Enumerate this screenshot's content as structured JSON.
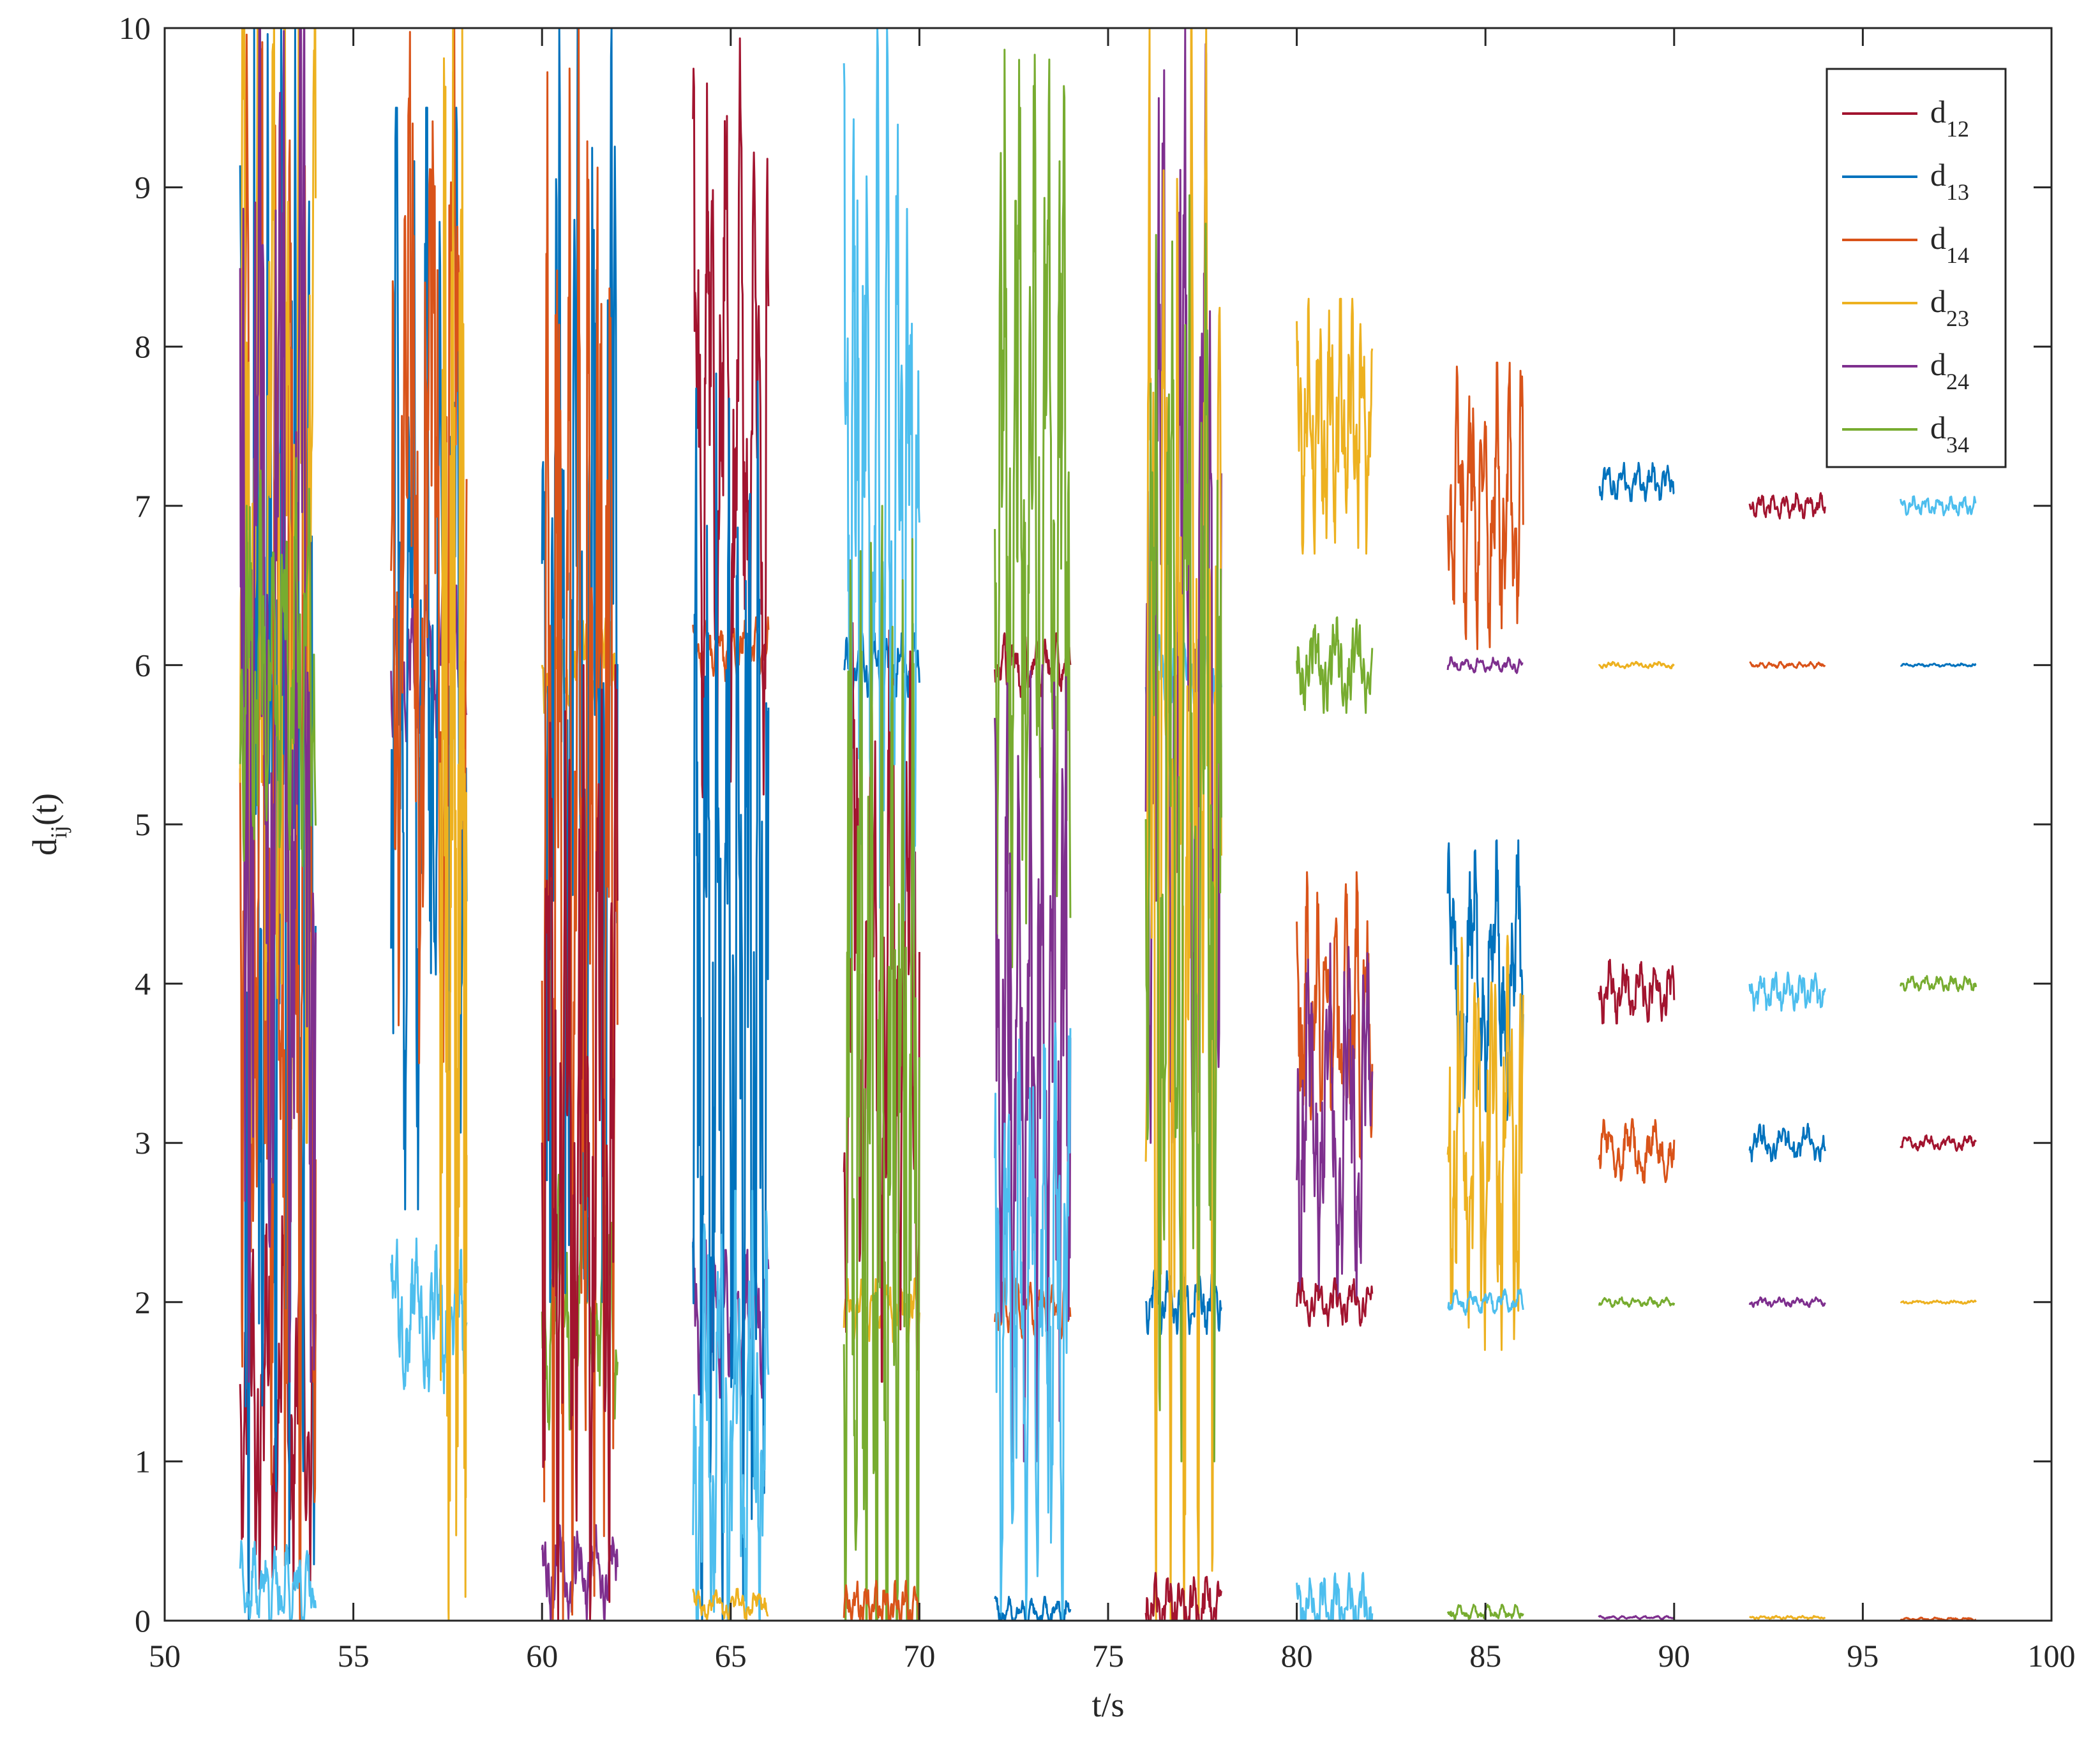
{
  "chart_data": {
    "type": "line",
    "title": "",
    "xlabel": "t/s",
    "ylabel": {
      "base": "d",
      "sub": "ij",
      "suffix": "(t)"
    },
    "xlim": [
      50,
      100
    ],
    "ylim": [
      0,
      10
    ],
    "xticks": [
      "50",
      "55",
      "60",
      "65",
      "70",
      "75",
      "80",
      "85",
      "90",
      "95",
      "100"
    ],
    "yticks": [
      "0",
      "1",
      "2",
      "3",
      "4",
      "5",
      "6",
      "7",
      "8",
      "9",
      "10"
    ],
    "grid": false,
    "legend_position": "top-right",
    "legend": [
      {
        "base": "d",
        "sub": "12",
        "color": "#A2142F"
      },
      {
        "base": "d",
        "sub": "13",
        "color": "#0072BD"
      },
      {
        "base": "d",
        "sub": "14",
        "color": "#D95319"
      },
      {
        "base": "d",
        "sub": "23",
        "color": "#EDB120"
      },
      {
        "base": "d",
        "sub": "24",
        "color": "#7E2F8E"
      },
      {
        "base": "d",
        "sub": "34",
        "color": "#77AC30"
      }
    ],
    "extra_color": "#4DBEEE",
    "segments": [
      {
        "series": "d12",
        "color": "#A2142F",
        "t0": 52,
        "t1": 54,
        "level": 1.4,
        "amp": 1.2
      },
      {
        "series": "d13",
        "color": "#0072BD",
        "t0": 52,
        "t1": 54,
        "level": 5.0,
        "amp": 5.0
      },
      {
        "series": "d14",
        "color": "#D95319",
        "t0": 52,
        "t1": 54,
        "level": 5.0,
        "amp": 5.0
      },
      {
        "series": "d23",
        "color": "#EDB120",
        "t0": 52,
        "t1": 54,
        "level": 7.0,
        "amp": 4.0
      },
      {
        "series": "d24",
        "color": "#7E2F8E",
        "t0": 52,
        "t1": 54,
        "level": 6.0,
        "amp": 4.5
      },
      {
        "series": "d34",
        "color": "#77AC30",
        "t0": 52,
        "t1": 54,
        "level": 6.0,
        "amp": 1.3
      },
      {
        "series": "extra",
        "color": "#4DBEEE",
        "t0": 52,
        "t1": 54,
        "level": 0.2,
        "amp": 0.3
      },
      {
        "series": "d24",
        "color": "#7E2F8E",
        "t0": 56,
        "t1": 58,
        "level": 6.0,
        "amp": 0.5
      },
      {
        "series": "extra",
        "color": "#4DBEEE",
        "t0": 56,
        "t1": 58,
        "level": 1.9,
        "amp": 0.5
      },
      {
        "series": "d13",
        "color": "#0072BD",
        "t0": 56,
        "t1": 58,
        "level": 6.0,
        "amp": 3.5
      },
      {
        "series": "d14",
        "color": "#D95319",
        "t0": 56,
        "t1": 58,
        "level": 7.0,
        "amp": 3.5
      },
      {
        "series": "d23",
        "color": "#EDB120",
        "t0": 57.3,
        "t1": 58,
        "level": 5.0,
        "amp": 5.0
      },
      {
        "series": "d23",
        "color": "#EDB120",
        "t0": 60,
        "t1": 62,
        "level": 6.0,
        "amp": 0.3
      },
      {
        "series": "d34",
        "color": "#77AC30",
        "t0": 60,
        "t1": 62,
        "level": 2.0,
        "amp": 0.8
      },
      {
        "series": "d24",
        "color": "#7E2F8E",
        "t0": 60,
        "t1": 62,
        "level": 0.3,
        "amp": 0.3
      },
      {
        "series": "d13",
        "color": "#0072BD",
        "t0": 60,
        "t1": 62,
        "level": 6.0,
        "amp": 4.0
      },
      {
        "series": "d14",
        "color": "#D95319",
        "t0": 60,
        "t1": 62,
        "level": 5.0,
        "amp": 5.0
      },
      {
        "series": "d12",
        "color": "#A2142F",
        "t0": 60,
        "t1": 62,
        "level": 3.0,
        "amp": 3.0
      },
      {
        "series": "d14",
        "color": "#D95319",
        "t0": 64,
        "t1": 66,
        "level": 6.1,
        "amp": 0.2
      },
      {
        "series": "d24",
        "color": "#7E2F8E",
        "t0": 64,
        "t1": 66,
        "level": 1.9,
        "amp": 0.5
      },
      {
        "series": "d12",
        "color": "#A2142F",
        "t0": 64,
        "t1": 66,
        "level": 7.5,
        "amp": 2.5
      },
      {
        "series": "d13",
        "color": "#0072BD",
        "t0": 64,
        "t1": 66,
        "level": 4.0,
        "amp": 4.0
      },
      {
        "series": "extra",
        "color": "#4DBEEE",
        "t0": 64,
        "t1": 66,
        "level": 1.2,
        "amp": 1.5
      },
      {
        "series": "d23",
        "color": "#EDB120",
        "t0": 64,
        "t1": 66,
        "level": 0.1,
        "amp": 0.1
      },
      {
        "series": "d13",
        "color": "#0072BD",
        "t0": 68,
        "t1": 70,
        "level": 6.0,
        "amp": 0.2
      },
      {
        "series": "d23",
        "color": "#EDB120",
        "t0": 68,
        "t1": 70,
        "level": 1.95,
        "amp": 0.2
      },
      {
        "series": "d12",
        "color": "#A2142F",
        "t0": 68,
        "t1": 70,
        "level": 4.0,
        "amp": 2.5
      },
      {
        "series": "extra",
        "color": "#4DBEEE",
        "t0": 68,
        "t1": 70,
        "level": 7.0,
        "amp": 3.0
      },
      {
        "series": "d34",
        "color": "#77AC30",
        "t0": 68,
        "t1": 70,
        "level": 3.0,
        "amp": 4.0
      },
      {
        "series": "d14",
        "color": "#D95319",
        "t0": 68,
        "t1": 70,
        "level": 0.1,
        "amp": 0.15
      },
      {
        "series": "d12",
        "color": "#A2142F",
        "t0": 72,
        "t1": 74,
        "level": 6.0,
        "amp": 0.2
      },
      {
        "series": "d14",
        "color": "#D95319",
        "t0": 72,
        "t1": 74,
        "level": 1.95,
        "amp": 0.2
      },
      {
        "series": "d34",
        "color": "#77AC30",
        "t0": 72,
        "t1": 74,
        "level": 7.0,
        "amp": 3.0
      },
      {
        "series": "d24",
        "color": "#7E2F8E",
        "t0": 72,
        "t1": 74,
        "level": 3.5,
        "amp": 2.5
      },
      {
        "series": "extra",
        "color": "#4DBEEE",
        "t0": 72,
        "t1": 74,
        "level": 2.0,
        "amp": 2.0
      },
      {
        "series": "d13",
        "color": "#0072BD",
        "t0": 72,
        "t1": 74,
        "level": 0.05,
        "amp": 0.1
      },
      {
        "series": "extra",
        "color": "#4DBEEE",
        "t0": 76,
        "t1": 78,
        "level": 6.0,
        "amp": 0.25
      },
      {
        "series": "d13",
        "color": "#0072BD",
        "t0": 76,
        "t1": 78,
        "level": 2.0,
        "amp": 0.2
      },
      {
        "series": "d24",
        "color": "#7E2F8E",
        "t0": 76,
        "t1": 78,
        "level": 6.5,
        "amp": 3.5
      },
      {
        "series": "d23",
        "color": "#EDB120",
        "t0": 76,
        "t1": 78,
        "level": 5.0,
        "amp": 5.0
      },
      {
        "series": "d34",
        "color": "#77AC30",
        "t0": 76,
        "t1": 78,
        "level": 5.0,
        "amp": 4.0
      },
      {
        "series": "d12",
        "color": "#A2142F",
        "t0": 76,
        "t1": 78,
        "level": 0.1,
        "amp": 0.2
      },
      {
        "series": "d23",
        "color": "#EDB120",
        "t0": 80,
        "t1": 82,
        "level": 7.5,
        "amp": 0.8
      },
      {
        "series": "d34",
        "color": "#77AC30",
        "t0": 80,
        "t1": 82,
        "level": 6.0,
        "amp": 0.3
      },
      {
        "series": "d14",
        "color": "#D95319",
        "t0": 80,
        "t1": 82,
        "level": 3.8,
        "amp": 0.9
      },
      {
        "series": "d24",
        "color": "#7E2F8E",
        "t0": 80,
        "t1": 82,
        "level": 3.2,
        "amp": 1.2
      },
      {
        "series": "d12",
        "color": "#A2142F",
        "t0": 80,
        "t1": 82,
        "level": 2.0,
        "amp": 0.15
      },
      {
        "series": "extra",
        "color": "#4DBEEE",
        "t0": 80,
        "t1": 82,
        "level": 0.1,
        "amp": 0.2
      },
      {
        "series": "d14",
        "color": "#D95319",
        "t0": 84,
        "t1": 86,
        "level": 7.0,
        "amp": 0.9
      },
      {
        "series": "d24",
        "color": "#7E2F8E",
        "t0": 84,
        "t1": 86,
        "level": 6.0,
        "amp": 0.05
      },
      {
        "series": "d13",
        "color": "#0072BD",
        "t0": 84,
        "t1": 86,
        "level": 4.0,
        "amp": 0.9
      },
      {
        "series": "d23",
        "color": "#EDB120",
        "t0": 84,
        "t1": 86,
        "level": 3.0,
        "amp": 1.3
      },
      {
        "series": "extra",
        "color": "#4DBEEE",
        "t0": 84,
        "t1": 86,
        "level": 2.0,
        "amp": 0.08
      },
      {
        "series": "d34",
        "color": "#77AC30",
        "t0": 84,
        "t1": 86,
        "level": 0.05,
        "amp": 0.05
      },
      {
        "series": "d13",
        "color": "#0072BD",
        "t0": 88,
        "t1": 90,
        "level": 7.15,
        "amp": 0.12
      },
      {
        "series": "d23",
        "color": "#EDB120",
        "t0": 88,
        "t1": 90,
        "level": 6.0,
        "amp": 0.02
      },
      {
        "series": "d12",
        "color": "#A2142F",
        "t0": 88,
        "t1": 90,
        "level": 3.95,
        "amp": 0.2
      },
      {
        "series": "d14",
        "color": "#D95319",
        "t0": 88,
        "t1": 90,
        "level": 2.95,
        "amp": 0.2
      },
      {
        "series": "d34",
        "color": "#77AC30",
        "t0": 88,
        "t1": 90,
        "level": 2.0,
        "amp": 0.03
      },
      {
        "series": "d24",
        "color": "#7E2F8E",
        "t0": 88,
        "t1": 90,
        "level": 0.02,
        "amp": 0.01
      },
      {
        "series": "d12",
        "color": "#A2142F",
        "t0": 92,
        "t1": 94,
        "level": 7.0,
        "amp": 0.08
      },
      {
        "series": "d14",
        "color": "#D95319",
        "t0": 92,
        "t1": 94,
        "level": 6.0,
        "amp": 0.02
      },
      {
        "series": "extra",
        "color": "#4DBEEE",
        "t0": 92,
        "t1": 94,
        "level": 3.95,
        "amp": 0.12
      },
      {
        "series": "d13",
        "color": "#0072BD",
        "t0": 92,
        "t1": 94,
        "level": 3.0,
        "amp": 0.12
      },
      {
        "series": "d24",
        "color": "#7E2F8E",
        "t0": 92,
        "t1": 94,
        "level": 2.0,
        "amp": 0.03
      },
      {
        "series": "d23",
        "color": "#EDB120",
        "t0": 92,
        "t1": 94,
        "level": 0.02,
        "amp": 0.01
      },
      {
        "series": "extra",
        "color": "#4DBEEE",
        "t0": 96,
        "t1": 98,
        "level": 7.0,
        "amp": 0.06
      },
      {
        "series": "d13",
        "color": "#0072BD",
        "t0": 96,
        "t1": 98,
        "level": 6.0,
        "amp": 0.01
      },
      {
        "series": "d34",
        "color": "#77AC30",
        "t0": 96,
        "t1": 98,
        "level": 4.0,
        "amp": 0.05
      },
      {
        "series": "d12",
        "color": "#A2142F",
        "t0": 96,
        "t1": 98,
        "level": 3.0,
        "amp": 0.05
      },
      {
        "series": "d23",
        "color": "#EDB120",
        "t0": 96,
        "t1": 98,
        "level": 2.0,
        "amp": 0.01
      },
      {
        "series": "d14",
        "color": "#D95319",
        "t0": 96,
        "t1": 98,
        "level": 0.01,
        "amp": 0.01
      }
    ]
  }
}
